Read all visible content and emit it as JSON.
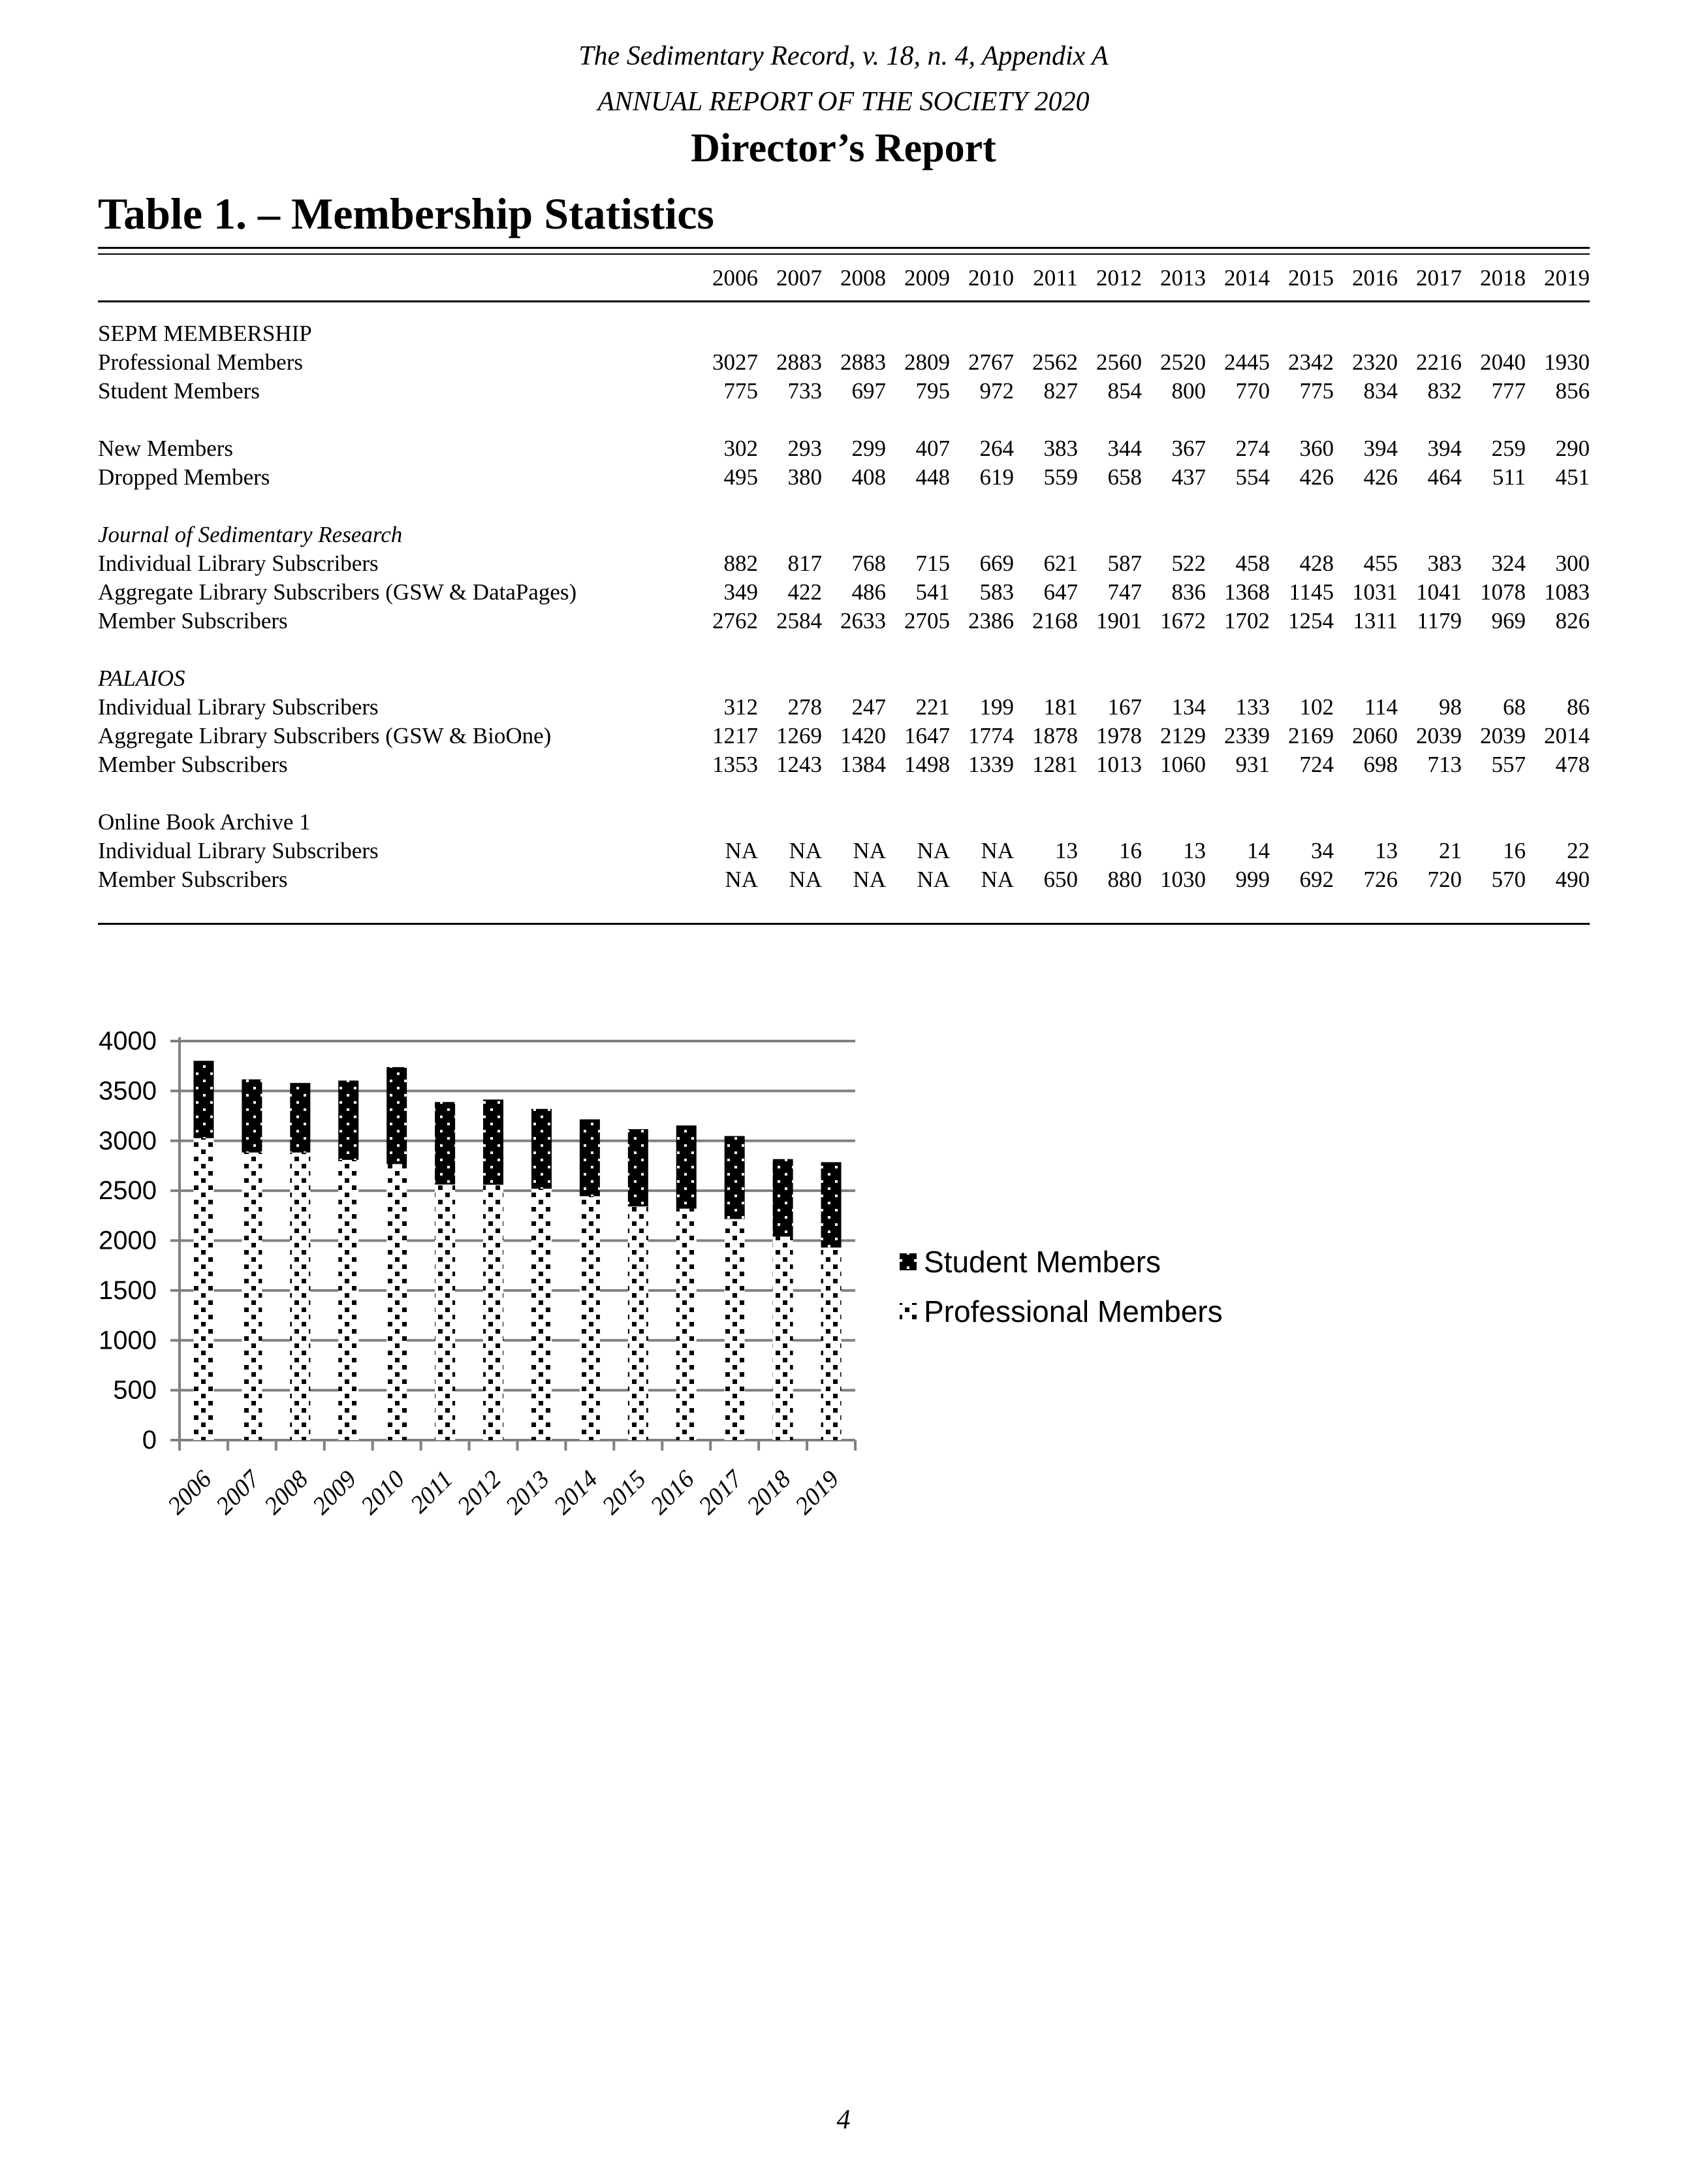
{
  "page": {
    "header_line1": "The Sedimentary Record, v. 18, n. 4, Appendix A",
    "header_line2": "ANNUAL REPORT OF THE SOCIETY 2020",
    "title": "Director’s Report",
    "table_title": "Table 1. – Membership Statistics",
    "page_number": "4"
  },
  "table": {
    "years": [
      "2006",
      "2007",
      "2008",
      "2009",
      "2010",
      "2011",
      "2012",
      "2013",
      "2014",
      "2015",
      "2016",
      "2017",
      "2018",
      "2019"
    ],
    "rows": [
      {
        "type": "section",
        "label": "SEPM MEMBERSHIP"
      },
      {
        "type": "data",
        "label": "Professional Members",
        "indent": 0,
        "values": [
          "3027",
          "2883",
          "2883",
          "2809",
          "2767",
          "2562",
          "2560",
          "2520",
          "2445",
          "2342",
          "2320",
          "2216",
          "2040",
          "1930"
        ]
      },
      {
        "type": "data",
        "label": "Student Members",
        "indent": 0,
        "values": [
          "775",
          "733",
          "697",
          "795",
          "972",
          "827",
          "854",
          "800",
          "770",
          "775",
          "834",
          "832",
          "777",
          "856"
        ]
      },
      {
        "type": "spacer"
      },
      {
        "type": "data",
        "label": "New Members",
        "indent": 0,
        "values": [
          "302",
          "293",
          "299",
          "407",
          "264",
          "383",
          "344",
          "367",
          "274",
          "360",
          "394",
          "394",
          "259",
          "290"
        ]
      },
      {
        "type": "data",
        "label": "Dropped Members",
        "indent": 0,
        "values": [
          "495",
          "380",
          "408",
          "448",
          "619",
          "559",
          "658",
          "437",
          "554",
          "426",
          "426",
          "464",
          "511",
          "451"
        ]
      },
      {
        "type": "spacer"
      },
      {
        "type": "section-italic",
        "label": "Journal of Sedimentary Research"
      },
      {
        "type": "data",
        "label": "Individual Library Subscribers",
        "indent": 1,
        "values": [
          "882",
          "817",
          "768",
          "715",
          "669",
          "621",
          "587",
          "522",
          "458",
          "428",
          "455",
          "383",
          "324",
          "300"
        ]
      },
      {
        "type": "data",
        "label": "Aggregate Library Subscribers (GSW & DataPages)",
        "indent": 1,
        "values": [
          "349",
          "422",
          "486",
          "541",
          "583",
          "647",
          "747",
          "836",
          "1368",
          "1145",
          "1031",
          "1041",
          "1078",
          "1083"
        ]
      },
      {
        "type": "data",
        "label": "Member Subscribers",
        "indent": 1,
        "values": [
          "2762",
          "2584",
          "2633",
          "2705",
          "2386",
          "2168",
          "1901",
          "1672",
          "1702",
          "1254",
          "1311",
          "1179",
          "969",
          "826"
        ]
      },
      {
        "type": "spacer"
      },
      {
        "type": "section-italic",
        "label": "PALAIOS"
      },
      {
        "type": "data",
        "label": "Individual Library Subscribers",
        "indent": 1,
        "values": [
          "312",
          "278",
          "247",
          "221",
          "199",
          "181",
          "167",
          "134",
          "133",
          "102",
          "114",
          "98",
          "68",
          "86"
        ]
      },
      {
        "type": "data",
        "label": "Aggregate Library Subscribers (GSW & BioOne)",
        "indent": 1,
        "values": [
          "1217",
          "1269",
          "1420",
          "1647",
          "1774",
          "1878",
          "1978",
          "2129",
          "2339",
          "2169",
          "2060",
          "2039",
          "2039",
          "2014"
        ]
      },
      {
        "type": "data",
        "label": "Member Subscribers",
        "indent": 1,
        "values": [
          "1353",
          "1243",
          "1384",
          "1498",
          "1339",
          "1281",
          "1013",
          "1060",
          "931",
          "724",
          "698",
          "713",
          "557",
          "478"
        ]
      },
      {
        "type": "spacer"
      },
      {
        "type": "section",
        "label": "Online Book Archive 1"
      },
      {
        "type": "data",
        "label": "Individual Library Subscribers",
        "indent": 1,
        "values": [
          "NA",
          "NA",
          "NA",
          "NA",
          "NA",
          "13",
          "16",
          "13",
          "14",
          "34",
          "13",
          "21",
          "16",
          "22"
        ]
      },
      {
        "type": "data",
        "label": "Member Subscribers",
        "indent": 1,
        "values": [
          "NA",
          "NA",
          "NA",
          "NA",
          "NA",
          "650",
          "880",
          "1030",
          "999",
          "692",
          "726",
          "720",
          "570",
          "490"
        ]
      }
    ]
  },
  "chart_data": {
    "type": "bar",
    "stacked": true,
    "categories": [
      "2006",
      "2007",
      "2008",
      "2009",
      "2010",
      "2011",
      "2012",
      "2013",
      "2014",
      "2015",
      "2016",
      "2017",
      "2018",
      "2019"
    ],
    "series": [
      {
        "name": "Professional Members",
        "values": [
          3027,
          2883,
          2883,
          2809,
          2767,
          2562,
          2560,
          2520,
          2445,
          2342,
          2320,
          2216,
          2040,
          1930
        ],
        "pattern": "professional"
      },
      {
        "name": "Student Members",
        "values": [
          775,
          733,
          697,
          795,
          972,
          827,
          854,
          800,
          770,
          775,
          834,
          832,
          777,
          856
        ],
        "pattern": "student"
      }
    ],
    "legend_order": [
      "Student Members",
      "Professional Members"
    ],
    "title": "",
    "xlabel": "",
    "ylabel": "",
    "ylim": [
      0,
      4000
    ],
    "ytick_step": 500,
    "grid": true,
    "legend_position": "right",
    "colors": {
      "grid": "#808080",
      "axis": "#808080",
      "bar": "#000000",
      "text": "#000000"
    }
  }
}
